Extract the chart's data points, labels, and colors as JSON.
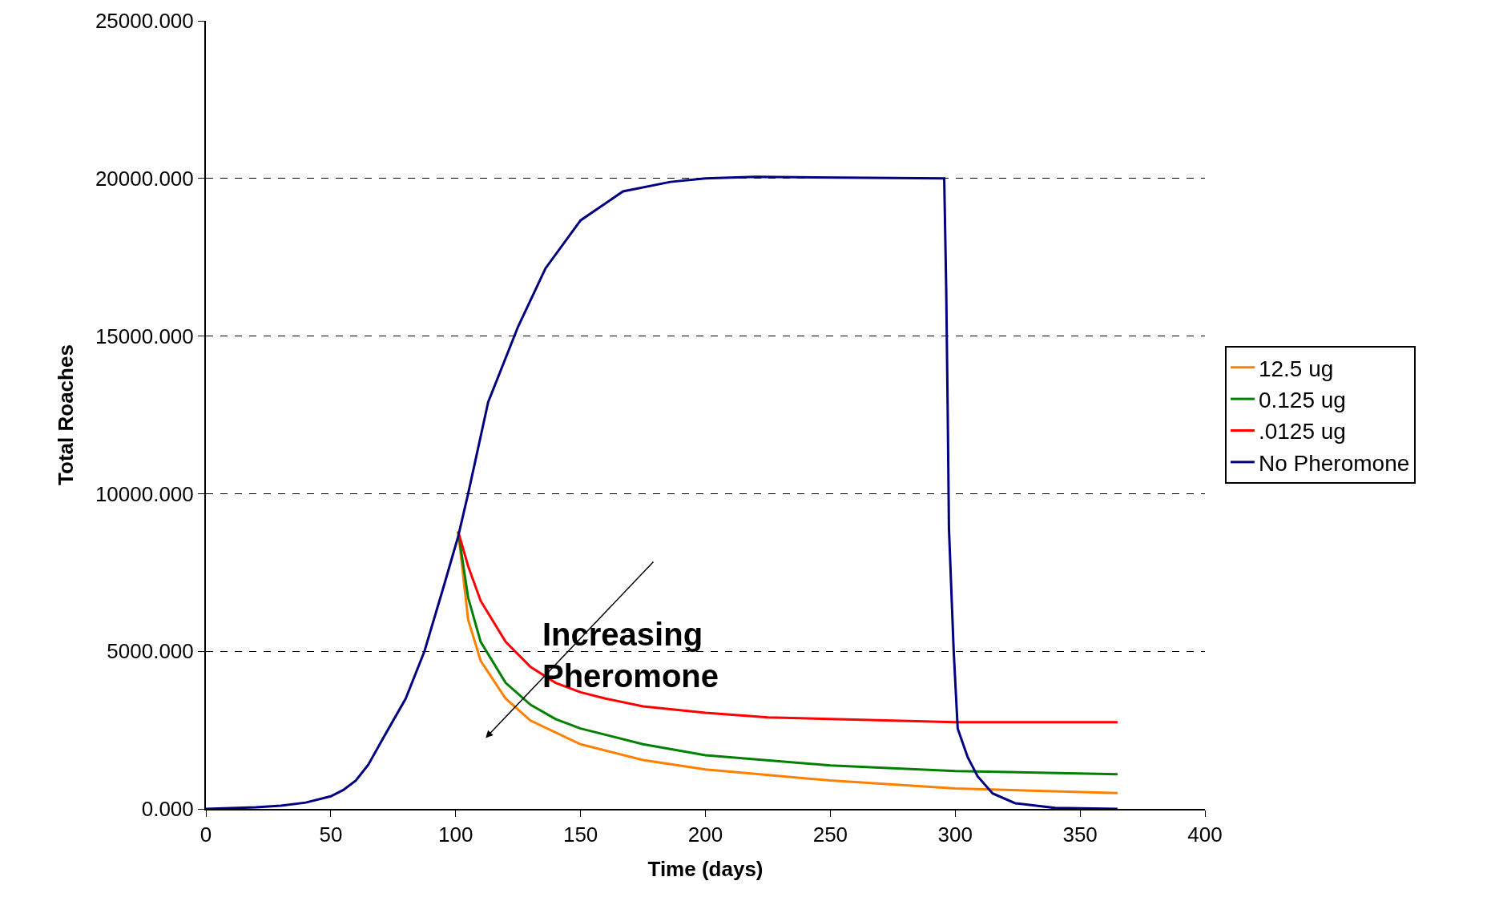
{
  "chart_data": {
    "type": "line",
    "xlabel": "Time (days)",
    "ylabel": "Total Roaches",
    "xlim": [
      0,
      400
    ],
    "xticks": [
      0,
      50,
      100,
      150,
      200,
      250,
      300,
      350,
      400
    ],
    "ylim": [
      0,
      25000
    ],
    "yticks": [
      {
        "value": 0,
        "label": "0.000"
      },
      {
        "value": 5000,
        "label": "5000.000"
      },
      {
        "value": 10000,
        "label": "10000.000"
      },
      {
        "value": 15000,
        "label": "15000.000"
      },
      {
        "value": 20000,
        "label": "20000.000"
      },
      {
        "value": 25000,
        "label": "25000.000"
      }
    ],
    "grid": "y",
    "legend": "right",
    "marker": "none",
    "line_style": "solid",
    "annotations": [
      "Increasing\nPheromone"
    ],
    "series": [
      {
        "name": "12.5 ug",
        "color": "#ff8000",
        "x": [
          101,
          105,
          110,
          120,
          130,
          150,
          175,
          200,
          250,
          300,
          365
        ],
        "values": [
          8800,
          6000,
          4700,
          3500,
          2800,
          2050,
          1550,
          1250,
          900,
          650,
          500
        ]
      },
      {
        "name": "0.125 ug",
        "color": "#008000",
        "x": [
          101,
          105,
          110,
          120,
          130,
          140,
          150,
          175,
          200,
          250,
          300,
          365
        ],
        "values": [
          8800,
          6700,
          5300,
          4000,
          3300,
          2850,
          2550,
          2050,
          1700,
          1380,
          1200,
          1100
        ]
      },
      {
        "name": ".0125 ug",
        "color": "#ff0000",
        "x": [
          101,
          105,
          110,
          120,
          130,
          140,
          150,
          160,
          175,
          200,
          225,
          250,
          275,
          300,
          365
        ],
        "values": [
          8800,
          7700,
          6600,
          5300,
          4500,
          4000,
          3700,
          3500,
          3250,
          3050,
          2900,
          2850,
          2800,
          2750,
          2750
        ]
      },
      {
        "name": "No Pheromone",
        "color": "#000080",
        "x": [
          0,
          20,
          30,
          40,
          50,
          55,
          60,
          65,
          71,
          80,
          87.5,
          95,
          101,
          105,
          113,
          125,
          136,
          150,
          167,
          186,
          200,
          220,
          295.6,
          296.4,
          297,
          297.5,
          299.4,
          301,
          305,
          309,
          315,
          324,
          340,
          365
        ],
        "values": [
          0,
          50,
          100,
          200,
          400,
          600,
          900,
          1400,
          2250,
          3500,
          5000,
          7000,
          8640,
          10000,
          12900,
          15300,
          17150,
          18670,
          19590,
          19890,
          20000,
          20050,
          20000,
          16500,
          12600,
          8900,
          5000,
          2550,
          1640,
          1030,
          490,
          180,
          30,
          0
        ]
      }
    ]
  }
}
